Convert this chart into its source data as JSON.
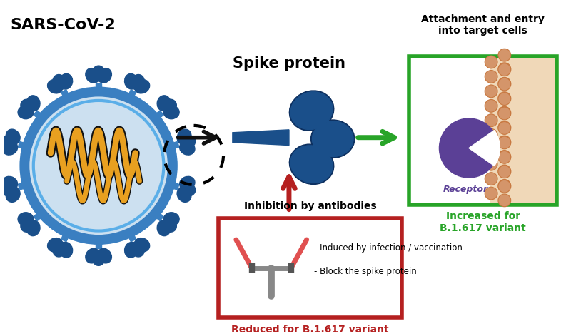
{
  "title": "SARS-CoV-2",
  "bg_color": "#ffffff",
  "spike_protein_label": "Spike protein",
  "attachment_label": "Attachment and entry\ninto target cells",
  "increased_label": "Increased for\nB.1.617 variant",
  "inhibition_label": "Inhibition by antibodies",
  "reduced_label": "Reduced for B.1.617 variant",
  "bullet1": "- Induced by infection / vaccination",
  "bullet2": "- Block the spike protein",
  "virus_body_color": "#cce0f0",
  "virus_ring_color": "#3a7fc1",
  "virus_ring2_color": "#5aaee8",
  "virus_spike_color": "#1a4f8a",
  "virus_spike_light": "#2e6db5",
  "rna_color": "#e8a020",
  "rna_outline": "#111111",
  "spike_protein_color": "#1a4f8a",
  "receptor_color": "#5b4096",
  "receptor_stem_color": "#5b4096",
  "cell_wall_color": "#f0d8b8",
  "cell_dot_color": "#d4956a",
  "cell_dot_outline": "#c87840",
  "green_box_color": "#28a428",
  "red_box_color": "#b52020",
  "arrow_black_color": "#111111",
  "arrow_green_color": "#28a428",
  "arrow_red_color": "#b52020",
  "antibody_body_color": "#888888",
  "antibody_arm_color": "#e05050",
  "text_color": "#000000",
  "green_text_color": "#28a428",
  "red_text_color": "#b52020"
}
